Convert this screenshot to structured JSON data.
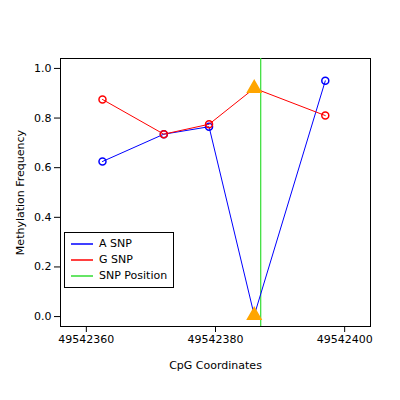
{
  "chart_data": {
    "type": "line",
    "x_label": "CpG Coordinates",
    "y_label": "Methylation Frequency",
    "x": [
      49542362.5,
      49542372,
      49542379,
      49542386,
      49542397
    ],
    "series": [
      {
        "name": "A SNP",
        "color": "#0000FF",
        "marker": "circle",
        "values": [
          0.625,
          0.735,
          0.765,
          0.005,
          0.95
        ]
      },
      {
        "name": "G SNP",
        "color": "#FF0000",
        "marker": "circle",
        "values": [
          0.875,
          0.735,
          0.775,
          0.92,
          0.81
        ]
      }
    ],
    "highlight": {
      "x": 49542386,
      "color": "#FFA500",
      "marker": "triangle"
    },
    "snp_position": {
      "name": "SNP Position",
      "x": 49542387,
      "color": "#33DD33"
    },
    "xlim": [
      49542356,
      49542404
    ],
    "xticks": [
      49542360,
      49542380,
      49542400
    ],
    "ylim": [
      -0.04,
      1.04
    ],
    "yticks": [
      {
        "value": 0,
        "label": "0.0"
      },
      {
        "value": 0.2,
        "label": "0.2"
      },
      {
        "value": 0.4,
        "label": "0.4"
      },
      {
        "value": 0.6,
        "label": "0.6"
      },
      {
        "value": 0.8,
        "label": "0.8"
      },
      {
        "value": 1,
        "label": "1.0"
      }
    ],
    "legend": "left",
    "grid": false
  }
}
